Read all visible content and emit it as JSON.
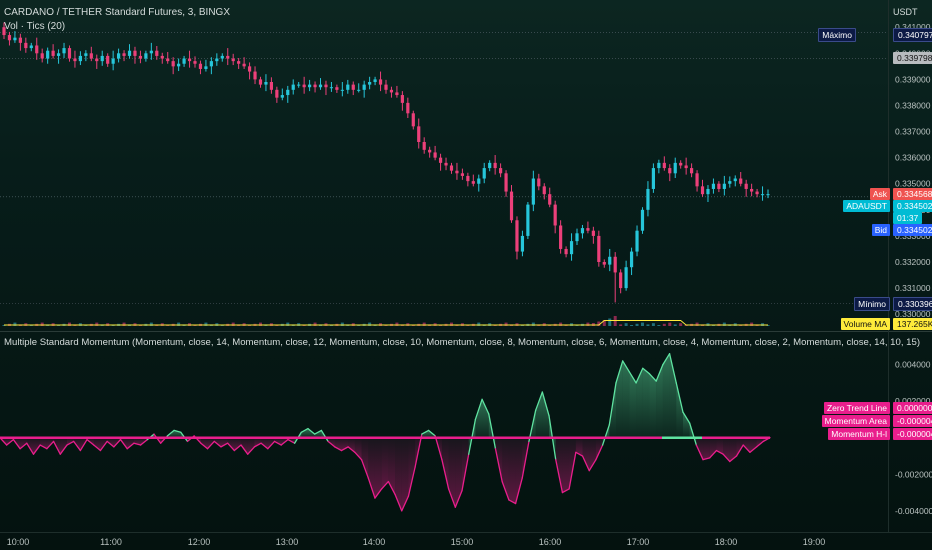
{
  "header": {
    "title": "CARDANO / TETHER Standard Futures, 3, BINGX",
    "vol_label": "Vol · Tics (20)",
    "currency": "USDT",
    "indicator_title": "Multiple Standard Momentum (Momentum, close, 14, Momentum, close, 12, Momentum, close, 10, Momentum, close, 8, Momentum, close, 6, Momentum, close, 4, Momentum, close, 2, Momentum, close, 14, 10, 15)"
  },
  "price_axis": {
    "ticks": [
      "0.341000",
      "0.340000",
      "0.339000",
      "0.338000",
      "0.337000",
      "0.336000",
      "0.335000",
      "0.334000",
      "0.333000",
      "0.332000",
      "0.331000",
      "0.330000"
    ],
    "tick_values": [
      0.341,
      0.34,
      0.339,
      0.338,
      0.337,
      0.336,
      0.335,
      0.334,
      0.333,
      0.332,
      0.331,
      0.33
    ]
  },
  "price_tags": {
    "max_label": "Máximo",
    "max_value": "0.340797",
    "prev_value": "0.339798",
    "ask_label": "Ask",
    "ask_value": "0.334568",
    "symbol_label": "ADAUSDT",
    "symbol_value": "0.334502",
    "countdown": "01:37",
    "bid_label": "Bid",
    "bid_value": "0.334502",
    "min_label": "Mínimo",
    "min_value": "0.330396",
    "volma_label": "Volume MA",
    "volma_value": "137.265K"
  },
  "indicator_axis": {
    "ticks": [
      "0.004000",
      "0.002000",
      "-0.002000",
      "-0.004000"
    ],
    "tick_values": [
      0.004,
      0.002,
      -0.002,
      -0.004
    ]
  },
  "indicator_tags": {
    "zero_label": "Zero Trend Line",
    "zero_value": "0.000000",
    "area_label": "Momentum Area",
    "area_value": "-0.000004",
    "hl_label": "Momentum H-l",
    "hl_value": "-0.000004"
  },
  "time_axis": {
    "labels": [
      "10:00",
      "11:00",
      "12:00",
      "13:00",
      "14:00",
      "15:00",
      "16:00",
      "17:00",
      "18:00",
      "19:00"
    ]
  },
  "colors": {
    "up": "#26c6da",
    "down": "#ec407a",
    "momentum_up": "#5fe3a1",
    "momentum_down": "#e91e8c",
    "zero_line": "#e91e8c",
    "ask": "#ef5350",
    "bid": "#2962ff",
    "symbol": "#00bcd4",
    "vol_ma": "#ffeb3b"
  },
  "chart_data": [
    {
      "type": "candlestick",
      "title": "CARDANO / TETHER Standard Futures, 3, BINGX",
      "x_range": [
        "09:45",
        "18:25"
      ],
      "ylim": [
        0.3297,
        0.3412
      ],
      "closes": [
        0.3407,
        0.3405,
        0.3406,
        0.3404,
        0.3402,
        0.3403,
        0.34,
        0.3398,
        0.3401,
        0.3399,
        0.34,
        0.3402,
        0.3398,
        0.3397,
        0.3399,
        0.34,
        0.3398,
        0.3397,
        0.3399,
        0.3396,
        0.3398,
        0.34,
        0.3399,
        0.3401,
        0.3399,
        0.3398,
        0.34,
        0.3401,
        0.3399,
        0.3398,
        0.3397,
        0.3395,
        0.3396,
        0.3398,
        0.3397,
        0.3396,
        0.3394,
        0.3395,
        0.3397,
        0.3398,
        0.3399,
        0.3398,
        0.3397,
        0.3396,
        0.3395,
        0.3393,
        0.339,
        0.3388,
        0.3389,
        0.3386,
        0.3383,
        0.3384,
        0.3386,
        0.3388,
        0.3388,
        0.3387,
        0.3388,
        0.3387,
        0.3388,
        0.3387,
        0.3387,
        0.3386,
        0.3386,
        0.3388,
        0.3386,
        0.3386,
        0.3388,
        0.3389,
        0.339,
        0.3388,
        0.3386,
        0.3385,
        0.3384,
        0.3381,
        0.3377,
        0.3372,
        0.3366,
        0.3363,
        0.3362,
        0.336,
        0.3358,
        0.3357,
        0.3355,
        0.3354,
        0.3353,
        0.3351,
        0.335,
        0.3352,
        0.3356,
        0.3358,
        0.3356,
        0.3354,
        0.3347,
        0.3336,
        0.3324,
        0.333,
        0.3342,
        0.3352,
        0.3349,
        0.3346,
        0.3342,
        0.3334,
        0.3325,
        0.3323,
        0.3328,
        0.3331,
        0.3333,
        0.3332,
        0.333,
        0.332,
        0.3319,
        0.3322,
        0.3316,
        0.331,
        0.3318,
        0.3324,
        0.3332,
        0.334,
        0.3348,
        0.3356,
        0.3358,
        0.3356,
        0.3354,
        0.3358,
        0.3357,
        0.3356,
        0.3354,
        0.3349,
        0.3346,
        0.3348,
        0.335,
        0.3348,
        0.335,
        0.3351,
        0.3352,
        0.335,
        0.3348,
        0.3347,
        0.3346,
        0.3346,
        0.3346
      ],
      "volume_ma_value": "137.265K"
    },
    {
      "type": "area",
      "title": "Multiple Standard Momentum",
      "ylim": [
        -0.0045,
        0.0048
      ],
      "zero_line": 0.0,
      "values": [
        0.0,
        -0.0004,
        -0.0001,
        -0.0006,
        -0.0003,
        -0.0009,
        -0.0004,
        -0.0006,
        -0.0002,
        -0.0009,
        -0.0004,
        -0.0002,
        -0.0007,
        -0.0001,
        -0.0004,
        -0.0007,
        -0.0002,
        -0.0005,
        -0.0001,
        -0.0006,
        -0.0003,
        -0.0004,
        -0.0001,
        0.0002,
        -0.0003,
        0.0001,
        0.0004,
        0.0003,
        -0.0002,
        0.0001,
        -0.0003,
        -0.0006,
        -0.0002,
        -0.0005,
        -0.0003,
        -0.0007,
        -0.0004,
        -0.0009,
        -0.0005,
        -0.0003,
        -0.0006,
        -0.0002,
        -0.0004,
        -0.0001,
        -0.0003,
        0.0003,
        0.0005,
        0.0002,
        0.0004,
        -0.0002,
        -0.0005,
        -0.0007,
        -0.0005,
        -0.0008,
        -0.0012,
        -0.0022,
        -0.0033,
        -0.0028,
        -0.0024,
        -0.0031,
        -0.004,
        -0.0032,
        -0.0016,
        0.0002,
        0.0004,
        0.0001,
        -0.0012,
        -0.0028,
        -0.0038,
        -0.0029,
        -0.0009,
        0.001,
        0.0021,
        0.0013,
        -0.0006,
        -0.0024,
        -0.0034,
        -0.0036,
        -0.0022,
        -0.0002,
        0.0015,
        0.0025,
        0.0012,
        -0.0012,
        -0.003,
        -0.0028,
        -0.0008,
        -0.001,
        -0.0018,
        -0.0012,
        -0.0004,
        0.0007,
        0.003,
        0.0042,
        0.0036,
        0.003,
        0.0038,
        0.0035,
        0.0031,
        0.004,
        0.0046,
        0.003,
        0.0014,
        0.0008,
        -0.0004,
        -0.0012,
        -0.0011,
        -0.0007,
        -0.0009,
        -0.0013,
        -0.001,
        -0.0004,
        -0.0008,
        -0.0005,
        -0.0002,
        0.0
      ]
    }
  ]
}
